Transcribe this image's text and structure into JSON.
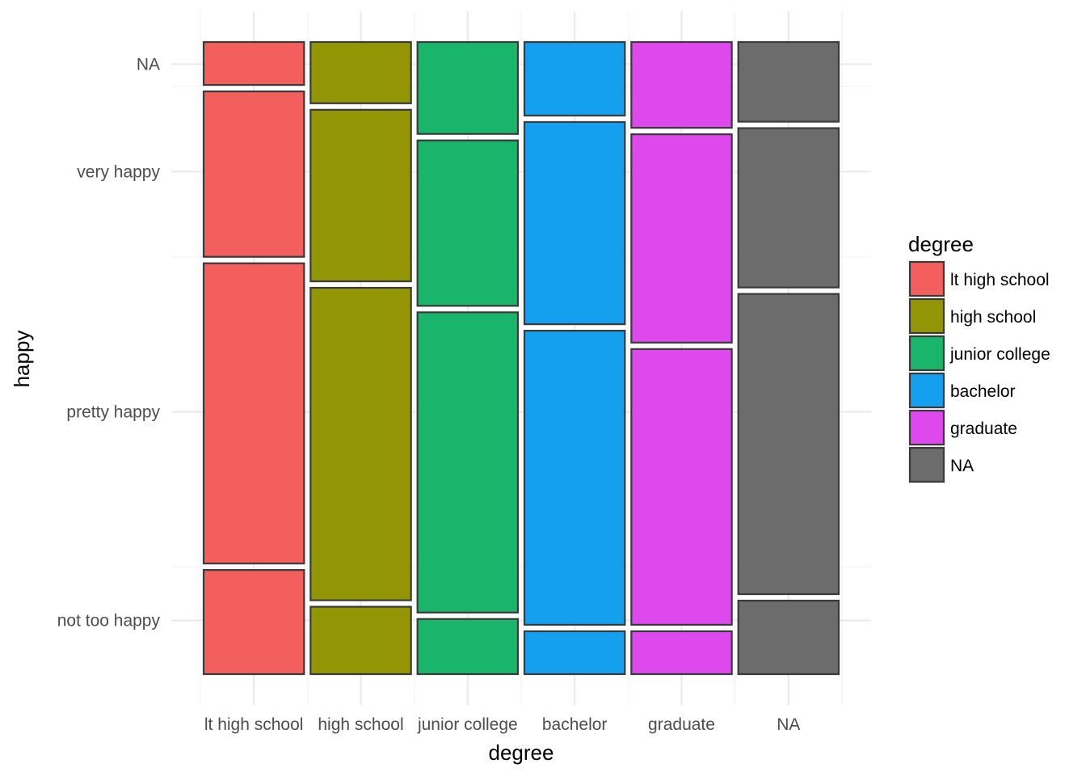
{
  "chart_data": {
    "type": "mosaic",
    "xlabel": "degree",
    "ylabel": "happy",
    "legend_title": "degree",
    "legend_position": "right",
    "grid": true,
    "categories": [
      "lt high school",
      "high school",
      "junior college",
      "bachelor",
      "graduate",
      "NA"
    ],
    "y_levels": [
      "not too happy",
      "pretty happy",
      "very happy",
      "NA"
    ],
    "column_widths": [
      1,
      1,
      1,
      1,
      1,
      1
    ],
    "proportions": [
      [
        0.17,
        0.49,
        0.27,
        0.07
      ],
      [
        0.11,
        0.51,
        0.28,
        0.1
      ],
      [
        0.09,
        0.49,
        0.27,
        0.15
      ],
      [
        0.07,
        0.48,
        0.33,
        0.12
      ],
      [
        0.07,
        0.45,
        0.34,
        0.14
      ],
      [
        0.12,
        0.49,
        0.26,
        0.13
      ]
    ],
    "colors": [
      "#F8766D",
      "#B79F00",
      "#00BA38",
      "#00BFC4",
      "#619CFF",
      "#F564E3"
    ],
    "legend_colors": [
      "#F25F5C",
      "#929604",
      "#19B56A",
      "#159FEF",
      "#DE49EE",
      "#6C6C6C"
    ]
  }
}
